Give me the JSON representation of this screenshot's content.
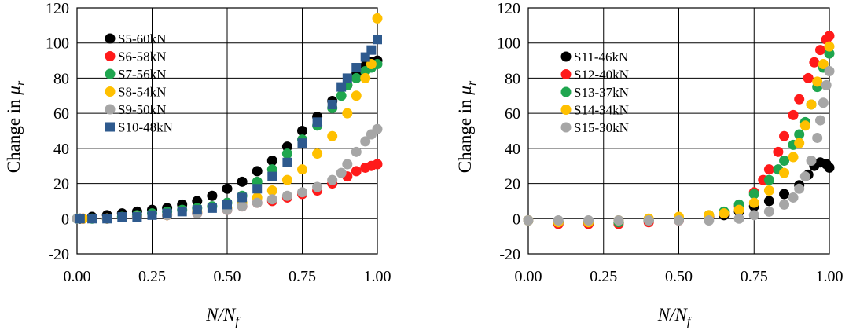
{
  "chart_data": [
    {
      "type": "scatter",
      "title": "",
      "xlabel": "N/Nf",
      "xlabel_main": "N/N",
      "xlabel_sub": "f",
      "ylabel": "Change in μr",
      "ylabel_main": "Change in ",
      "ylabel_mu": "μ",
      "ylabel_sub": "r",
      "xlim": [
        0,
        1
      ],
      "ylim": [
        -20,
        120
      ],
      "xticks": [
        0,
        0.25,
        0.5,
        0.75,
        1
      ],
      "xtick_labels": [
        "0.00",
        "0.25",
        "0.50",
        "0.75",
        "1.00"
      ],
      "yticks": [
        -20,
        0,
        20,
        40,
        60,
        80,
        100,
        120
      ],
      "ytick_labels": [
        "-20",
        "0",
        "20",
        "40",
        "60",
        "80",
        "100",
        "120"
      ],
      "grid": true,
      "legend_position": "top-left",
      "series": [
        {
          "name": "S5-60kN",
          "color": "#000000",
          "marker": "circle",
          "x": [
            0.01,
            0.05,
            0.1,
            0.15,
            0.2,
            0.25,
            0.3,
            0.35,
            0.4,
            0.45,
            0.5,
            0.55,
            0.6,
            0.65,
            0.7,
            0.75,
            0.8,
            0.85,
            0.9,
            0.93,
            0.96,
            0.98,
            1.0
          ],
          "y": [
            0,
            1,
            2,
            3,
            4,
            5,
            6,
            8,
            10,
            13,
            17,
            21,
            27,
            33,
            41,
            50,
            58,
            67,
            76,
            82,
            87,
            89,
            90
          ]
        },
        {
          "name": "S6-58kN",
          "color": "#ff1a1a",
          "marker": "circle",
          "x": [
            0.02,
            0.1,
            0.2,
            0.3,
            0.4,
            0.5,
            0.55,
            0.6,
            0.65,
            0.7,
            0.75,
            0.8,
            0.85,
            0.9,
            0.93,
            0.96,
            0.98,
            1.0
          ],
          "y": [
            0,
            0,
            1,
            2,
            3,
            5,
            7,
            9,
            10,
            12,
            14,
            16,
            20,
            24,
            27,
            29,
            30,
            31
          ]
        },
        {
          "name": "S7-56kN",
          "color": "#1fa64f",
          "marker": "circle",
          "x": [
            0.0,
            0.05,
            0.1,
            0.15,
            0.2,
            0.25,
            0.3,
            0.35,
            0.4,
            0.45,
            0.5,
            0.55,
            0.6,
            0.65,
            0.7,
            0.75,
            0.8,
            0.85,
            0.88,
            0.9,
            0.93,
            0.96,
            0.98,
            1.0
          ],
          "y": [
            0,
            0,
            0,
            1,
            2,
            3,
            4,
            5,
            6,
            7,
            9,
            13,
            21,
            28,
            37,
            45,
            53,
            63,
            70,
            76,
            80,
            84,
            86,
            88
          ]
        },
        {
          "name": "S8-54kN",
          "color": "#ffc000",
          "marker": "circle",
          "x": [
            0.02,
            0.1,
            0.2,
            0.3,
            0.4,
            0.5,
            0.55,
            0.6,
            0.65,
            0.7,
            0.75,
            0.8,
            0.85,
            0.9,
            0.93,
            0.96,
            0.98,
            1.0
          ],
          "y": [
            0,
            0,
            1,
            2,
            4,
            6,
            9,
            12,
            16,
            22,
            28,
            37,
            47,
            60,
            70,
            80,
            88,
            114
          ]
        },
        {
          "name": "S9-50kN",
          "color": "#a6a6a6",
          "marker": "circle",
          "x": [
            0.0,
            0.1,
            0.2,
            0.3,
            0.4,
            0.5,
            0.55,
            0.6,
            0.65,
            0.7,
            0.75,
            0.8,
            0.85,
            0.88,
            0.9,
            0.93,
            0.96,
            0.98,
            1.0
          ],
          "y": [
            0,
            0,
            1,
            2,
            3,
            5,
            7,
            9,
            11,
            13,
            15,
            18,
            22,
            26,
            31,
            38,
            44,
            48,
            51
          ]
        },
        {
          "name": "S10-48kN",
          "color": "#2e5a8e",
          "marker": "square",
          "x": [
            0.01,
            0.05,
            0.1,
            0.15,
            0.2,
            0.25,
            0.3,
            0.35,
            0.4,
            0.45,
            0.5,
            0.55,
            0.6,
            0.65,
            0.7,
            0.75,
            0.8,
            0.85,
            0.88,
            0.9,
            0.93,
            0.96,
            0.98,
            1.0
          ],
          "y": [
            0,
            0,
            0,
            1,
            1,
            2,
            3,
            4,
            5,
            6,
            8,
            12,
            17,
            24,
            32,
            43,
            55,
            65,
            75,
            80,
            86,
            92,
            96,
            102
          ]
        }
      ]
    },
    {
      "type": "scatter",
      "title": "",
      "xlabel": "N/Nf",
      "xlabel_main": "N/N",
      "xlabel_sub": "f",
      "ylabel": "Change in μr",
      "ylabel_main": "Change in ",
      "ylabel_mu": "μ",
      "ylabel_sub": "r",
      "xlim": [
        0,
        1
      ],
      "ylim": [
        -20,
        120
      ],
      "xticks": [
        0,
        0.25,
        0.5,
        0.75,
        1
      ],
      "xtick_labels": [
        "0.00",
        "0.25",
        "0.50",
        "0.75",
        "1.00"
      ],
      "yticks": [
        -20,
        0,
        20,
        40,
        60,
        80,
        100,
        120
      ],
      "ytick_labels": [
        "-20",
        "0",
        "20",
        "40",
        "60",
        "80",
        "100",
        "120"
      ],
      "grid": true,
      "legend_position": "top-left",
      "series": [
        {
          "name": "S11-46kN",
          "color": "#000000",
          "marker": "circle",
          "x": [
            0.0,
            0.1,
            0.2,
            0.3,
            0.4,
            0.5,
            0.6,
            0.65,
            0.7,
            0.75,
            0.8,
            0.85,
            0.9,
            0.93,
            0.95,
            0.97,
            0.99,
            1.0
          ],
          "y": [
            -1,
            -2,
            -2,
            -2,
            -1,
            0,
            1,
            2,
            4,
            7,
            10,
            14,
            19,
            25,
            30,
            32,
            31,
            29
          ]
        },
        {
          "name": "S12-40kN",
          "color": "#ff1a1a",
          "marker": "circle",
          "x": [
            0.0,
            0.1,
            0.2,
            0.3,
            0.4,
            0.5,
            0.6,
            0.65,
            0.7,
            0.75,
            0.78,
            0.8,
            0.83,
            0.85,
            0.88,
            0.9,
            0.93,
            0.95,
            0.97,
            0.99,
            1.0
          ],
          "y": [
            -1,
            -3,
            -3,
            -3,
            -2,
            -1,
            1,
            3,
            7,
            15,
            22,
            28,
            38,
            47,
            59,
            68,
            80,
            89,
            96,
            102,
            104
          ]
        },
        {
          "name": "S13-37kN",
          "color": "#1fa64f",
          "marker": "circle",
          "x": [
            0.0,
            0.1,
            0.2,
            0.3,
            0.4,
            0.5,
            0.6,
            0.65,
            0.7,
            0.75,
            0.8,
            0.83,
            0.85,
            0.88,
            0.9,
            0.92,
            0.94,
            0.96,
            0.98,
            1.0
          ],
          "y": [
            -1,
            -2,
            -2,
            -2,
            -1,
            0,
            2,
            4,
            8,
            14,
            22,
            28,
            33,
            42,
            48,
            55,
            65,
            75,
            86,
            94
          ]
        },
        {
          "name": "S14-34kN",
          "color": "#ffc000",
          "marker": "circle",
          "x": [
            0.0,
            0.1,
            0.2,
            0.3,
            0.4,
            0.5,
            0.6,
            0.65,
            0.7,
            0.75,
            0.8,
            0.85,
            0.88,
            0.9,
            0.92,
            0.94,
            0.96,
            0.98,
            1.0
          ],
          "y": [
            -1,
            -2,
            -2,
            -1,
            0,
            1,
            2,
            3,
            5,
            9,
            16,
            26,
            35,
            43,
            53,
            65,
            78,
            88,
            98
          ]
        },
        {
          "name": "S15-30kN",
          "color": "#a6a6a6",
          "marker": "circle",
          "x": [
            0.0,
            0.1,
            0.2,
            0.3,
            0.4,
            0.5,
            0.6,
            0.7,
            0.75,
            0.8,
            0.85,
            0.88,
            0.9,
            0.92,
            0.94,
            0.96,
            0.97,
            0.98,
            0.99,
            1.0
          ],
          "y": [
            -1,
            -1,
            -1,
            -1,
            -1,
            -1,
            -1,
            0,
            2,
            4,
            8,
            12,
            17,
            24,
            33,
            46,
            56,
            66,
            76,
            84
          ]
        }
      ]
    }
  ]
}
